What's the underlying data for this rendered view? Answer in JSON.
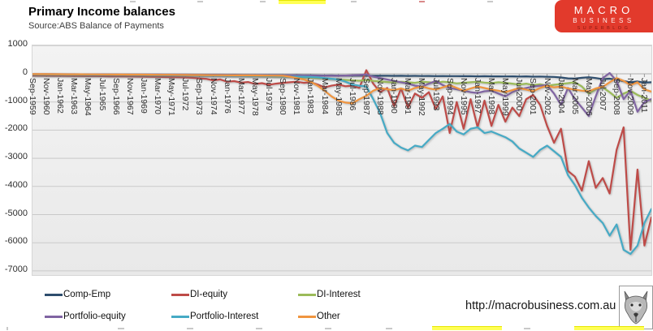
{
  "header": {
    "title": "Primary Income balances",
    "source": "Source:ABS Balance of Payments"
  },
  "brand_logo": {
    "line1": "MACRO",
    "line2": "BUSINESS",
    "line3": "SUPERBLOG",
    "background": "#e23a2c"
  },
  "footer": {
    "url": "http://macrobusiness.com.au",
    "logo": "wolf-logo"
  },
  "chart_data": {
    "type": "line",
    "title": "Primary Income balances",
    "subtitle": "Source:ABS Balance of Payments",
    "grid": true,
    "legend_position": "bottom",
    "ylim": [
      -7000,
      1000
    ],
    "yticks": [
      1000,
      0,
      -1000,
      -2000,
      -3000,
      -4000,
      -5000,
      -6000,
      -7000
    ],
    "x_label_rotation_deg": 90,
    "points_per_label": 2,
    "x_labels": [
      "Sep-1959",
      "Nov-1960",
      "Jan-1962",
      "Mar-1963",
      "May-1964",
      "Jul-1965",
      "Sep-1966",
      "Nov-1967",
      "Jan-1969",
      "Mar-1970",
      "May-1971",
      "Jul-1972",
      "Sep-1973",
      "Nov-1974",
      "Jan-1976",
      "Mar-1977",
      "May-1978",
      "Jul-1979",
      "Sep-1980",
      "Nov-1981",
      "Jan-1983",
      "Mar-1984",
      "May-1985",
      "Jul-1986",
      "Sep-1987",
      "Nov-1988",
      "Jan-1990",
      "Mar-1991",
      "May-1992",
      "Jul-1993",
      "Sep-1994",
      "Nov-1995",
      "Jan-1997",
      "Mar-1998",
      "May-1999",
      "Jul-2000",
      "Sep-2001",
      "Nov-2002",
      "Jan-2004",
      "Mar-2005",
      "May-2006",
      "Jul-2007",
      "Sep-2008",
      "Nov-2009",
      "Jan-2011"
    ],
    "series": [
      {
        "name": "Comp-Emp",
        "color": "#2e4e6e",
        "values": [
          -20,
          -22,
          -25,
          -24,
          -26,
          -25,
          -28,
          -26,
          -30,
          -28,
          -30,
          -32,
          -30,
          -34,
          -32,
          -35,
          -34,
          -36,
          -35,
          -38,
          -36,
          -40,
          -38,
          -40,
          -42,
          -40,
          -44,
          -42,
          -45,
          -44,
          -46,
          -45,
          -48,
          -46,
          -50,
          -48,
          -50,
          -52,
          -50,
          -55,
          -55,
          -58,
          -60,
          -58,
          -62,
          -60,
          -65,
          -62,
          -68,
          -65,
          -70,
          -68,
          -72,
          -70,
          -75,
          -72,
          -78,
          -75,
          -80,
          -78,
          -82,
          -80,
          -85,
          -82,
          -88,
          -85,
          -90,
          -88,
          -92,
          -90,
          -95,
          -90,
          -100,
          -95,
          -105,
          -110,
          -130,
          -160,
          -170,
          -140,
          -120,
          -150,
          -190,
          -170,
          -210,
          -260,
          -300,
          -270,
          -310,
          -300
        ]
      },
      {
        "name": "DI-equity",
        "color": "#be4b48",
        "values": [
          -60,
          -62,
          -65,
          -68,
          -70,
          -72,
          -75,
          -78,
          -80,
          -82,
          -85,
          -88,
          -90,
          -92,
          -95,
          -98,
          -100,
          -105,
          -110,
          -115,
          -120,
          -125,
          -130,
          -140,
          -160,
          -180,
          -230,
          -200,
          -280,
          -260,
          -310,
          -290,
          -360,
          -330,
          -390,
          -350,
          -320,
          -300,
          -280,
          -320,
          -300,
          -380,
          -480,
          -420,
          -380,
          -440,
          -420,
          -500,
          130,
          -350,
          -650,
          -500,
          -1150,
          -520,
          -1200,
          -700,
          -850,
          -650,
          -1250,
          -800,
          -2100,
          -1000,
          -1950,
          -900,
          -1900,
          -950,
          -1850,
          -1100,
          -1700,
          -1200,
          -1500,
          -900,
          -750,
          -1100,
          -1850,
          -2450,
          -1950,
          -3450,
          -3650,
          -4150,
          -3100,
          -4050,
          -3700,
          -4250,
          -2700,
          -1900,
          -6250,
          -3400,
          -6100,
          -5100
        ]
      },
      {
        "name": "DI-Interest",
        "color": "#9bbb59",
        "values": [
          -15,
          -16,
          -18,
          -18,
          -20,
          -20,
          -22,
          -22,
          -24,
          -25,
          -26,
          -26,
          -28,
          -28,
          -30,
          -30,
          -32,
          -33,
          -34,
          -35,
          -36,
          -37,
          -38,
          -40,
          -45,
          -48,
          -52,
          -55,
          -60,
          -65,
          -70,
          -75,
          -80,
          -85,
          -90,
          -95,
          -100,
          -110,
          -120,
          -130,
          -140,
          -155,
          -170,
          -185,
          -200,
          -215,
          -230,
          -245,
          -220,
          -250,
          -270,
          -290,
          -310,
          -280,
          -300,
          -320,
          -280,
          -300,
          -320,
          -280,
          -300,
          -340,
          -320,
          -300,
          -280,
          -310,
          -330,
          -300,
          -320,
          -350,
          -380,
          -350,
          -400,
          -370,
          -420,
          -390,
          -360,
          -330,
          -300,
          -450,
          -700,
          -550,
          -480,
          -650,
          -850,
          -700,
          -600,
          -750,
          -850,
          -950
        ]
      },
      {
        "name": "Portfolio-equity",
        "color": "#8064a2",
        "values": [
          -10,
          -11,
          -12,
          -12,
          -14,
          -14,
          -15,
          -16,
          -16,
          -18,
          -18,
          -20,
          -20,
          -22,
          -22,
          -24,
          -25,
          -26,
          -26,
          -28,
          -28,
          -30,
          -30,
          -32,
          -33,
          -34,
          -35,
          -36,
          -38,
          -40,
          -42,
          -44,
          -45,
          -46,
          -48,
          -50,
          -52,
          -55,
          -58,
          -60,
          -62,
          -65,
          -68,
          -70,
          -72,
          -60,
          -50,
          -40,
          -20,
          -100,
          -150,
          -200,
          -250,
          -300,
          -350,
          -420,
          -450,
          -350,
          -250,
          -400,
          -500,
          -550,
          -600,
          -650,
          -680,
          -620,
          -600,
          -700,
          -800,
          -650,
          -550,
          -500,
          -450,
          -420,
          -400,
          -700,
          -1100,
          -500,
          -900,
          -1200,
          -1500,
          -800,
          -150,
          30,
          -250,
          -900,
          -600,
          -1350,
          -1000,
          -900
        ]
      },
      {
        "name": "Portfolio-Interest",
        "color": "#46aac5",
        "values": [
          -20,
          -22,
          -24,
          -25,
          -26,
          -28,
          -30,
          -30,
          -32,
          -34,
          -35,
          -36,
          -38,
          -38,
          -40,
          -42,
          -44,
          -45,
          -46,
          -48,
          -50,
          -52,
          -54,
          -55,
          -58,
          -60,
          -62,
          -64,
          -66,
          -68,
          -70,
          -72,
          -75,
          -78,
          -80,
          -85,
          -90,
          -95,
          -100,
          -105,
          -110,
          -125,
          -150,
          -175,
          -200,
          -280,
          -380,
          -420,
          -450,
          -900,
          -1400,
          -2100,
          -2450,
          -2620,
          -2720,
          -2550,
          -2600,
          -2350,
          -2100,
          -1950,
          -1780,
          -2050,
          -2150,
          -1950,
          -1900,
          -2100,
          -2050,
          -2150,
          -2250,
          -2400,
          -2650,
          -2800,
          -2950,
          -2700,
          -2550,
          -2750,
          -2950,
          -3600,
          -3950,
          -4400,
          -4750,
          -5050,
          -5300,
          -5750,
          -5350,
          -6250,
          -6400,
          -6100,
          -5300,
          -4800
        ]
      },
      {
        "name": "Other",
        "color": "#f0953f",
        "values": [
          -10,
          -12,
          -12,
          -14,
          -15,
          -16,
          -16,
          -18,
          -20,
          -20,
          -22,
          -24,
          -25,
          -26,
          -28,
          -28,
          -30,
          -32,
          -34,
          -35,
          -36,
          -38,
          -40,
          -42,
          -44,
          -45,
          -48,
          -50,
          -52,
          -54,
          -55,
          -56,
          -58,
          -60,
          -62,
          -65,
          -70,
          -100,
          -150,
          -200,
          -280,
          -420,
          -600,
          -800,
          -950,
          -1020,
          -1050,
          -900,
          -780,
          -600,
          -500,
          -550,
          -580,
          -520,
          -600,
          -500,
          -450,
          -520,
          -560,
          -480,
          -400,
          -500,
          -600,
          -520,
          -450,
          -500,
          -560,
          -600,
          -650,
          -580,
          -500,
          -560,
          -620,
          -500,
          -420,
          -480,
          -450,
          -520,
          -560,
          -600,
          -620,
          -520,
          -460,
          -300,
          -150,
          -250,
          -400,
          -300,
          -550,
          -630
        ]
      }
    ]
  }
}
